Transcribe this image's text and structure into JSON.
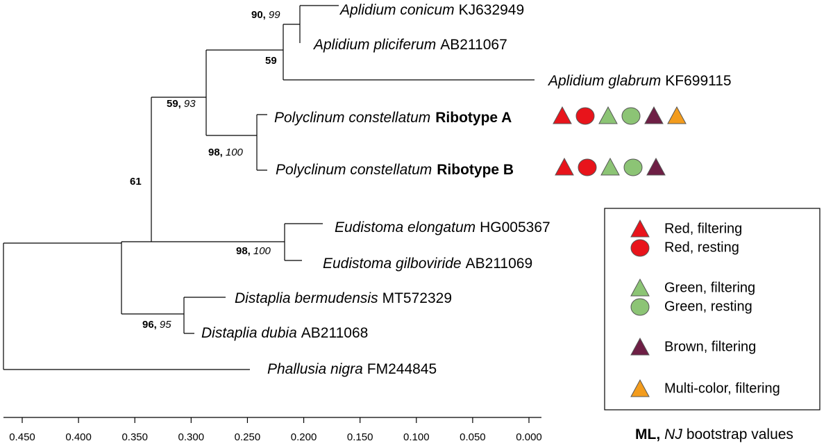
{
  "taxa": [
    {
      "species": "Aplidium conicum",
      "accession": "KJ632949"
    },
    {
      "species": "Aplidium pliciferum",
      "accession": "AB211067"
    },
    {
      "species": "Aplidium glabrum",
      "accession": "KF699115"
    },
    {
      "species": "Polyclinum constellatum",
      "ribotype": "Ribotype A"
    },
    {
      "species": "Polyclinum constellatum",
      "ribotype": "Ribotype B"
    },
    {
      "species": "Eudistoma elongatum",
      "accession": "HG005367"
    },
    {
      "species": "Eudistoma gilboviride",
      "accession": "AB211069"
    },
    {
      "species": "Distaplia bermudensis",
      "accession": "MT572329"
    },
    {
      "species": "Distaplia dubia",
      "accession": "AB211068"
    },
    {
      "species": "Phallusia nigra",
      "accession": "FM244845"
    }
  ],
  "bootstrap": [
    {
      "ml": "90,",
      "nj": "99"
    },
    {
      "ml": "59"
    },
    {
      "ml": "59,",
      "nj": "93"
    },
    {
      "ml": "98,",
      "nj": "100"
    },
    {
      "ml": "61"
    },
    {
      "ml": "98,",
      "nj": "100"
    },
    {
      "ml": "96,",
      "nj": "95"
    }
  ],
  "legend": [
    "Red, filtering",
    "Red, resting",
    "Green, filtering",
    "Green, resting",
    "Brown, filtering",
    "Multi-color, filtering"
  ],
  "scale": [
    "0.450",
    "0.400",
    "0.350",
    "0.300",
    "0.250",
    "0.200",
    "0.150",
    "0.100",
    "0.050",
    "0.000"
  ],
  "caption": {
    "ml": "ML,",
    "nj": "NJ",
    "rest": "bootstrap values"
  }
}
